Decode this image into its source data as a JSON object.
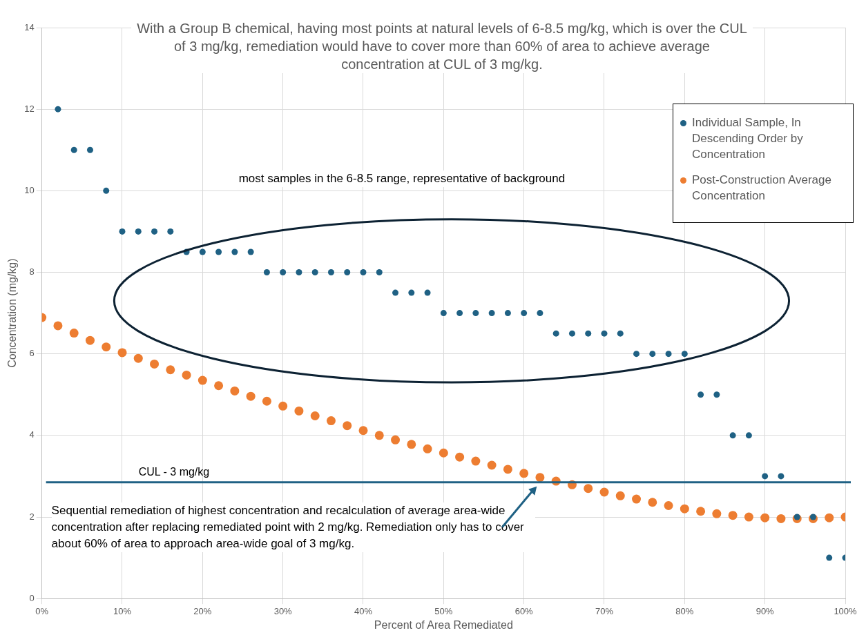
{
  "chart_data": {
    "type": "scatter",
    "title": "With a Group B chemical, having most points at natural levels of 6-8.5 mg/kg,  which is over the CUL of 3 mg/kg,  remediation would have to cover more than 60% of area to achieve average concentration at CUL of 3 mg/kg.",
    "xlabel": "Percent of Area Remediated",
    "ylabel": "Concentration (mg/kg)",
    "series": [
      {
        "name": "Individual Sample, In Descending Order by Concentration",
        "color": "#1f6184",
        "x": [
          2,
          4,
          6,
          8,
          10,
          12,
          14,
          16,
          18,
          20,
          22,
          24,
          26,
          28,
          30,
          32,
          34,
          36,
          38,
          40,
          42,
          44,
          46,
          48,
          50,
          52,
          54,
          56,
          58,
          60,
          62,
          64,
          66,
          68,
          70,
          72,
          74,
          76,
          78,
          80,
          82,
          84,
          86,
          88,
          90,
          92,
          94,
          96,
          98,
          100
        ],
        "values": [
          12,
          11,
          11,
          10,
          9,
          9,
          9,
          9,
          8.5,
          8.5,
          8.5,
          8.5,
          8.5,
          8,
          8,
          8,
          8,
          8,
          8,
          8,
          8,
          7.5,
          7.5,
          7.5,
          7,
          7,
          7,
          7,
          7,
          7,
          7,
          6.5,
          6.5,
          6.5,
          6.5,
          6.5,
          6,
          6,
          6,
          6,
          5,
          5,
          4,
          4,
          3,
          3,
          2,
          2,
          1,
          1
        ]
      },
      {
        "name": "Post-Construction Average Concentration",
        "color": "#ed7d31",
        "x": [
          0,
          2,
          4,
          6,
          8,
          10,
          12,
          14,
          16,
          18,
          20,
          22,
          24,
          26,
          28,
          30,
          32,
          34,
          36,
          38,
          40,
          42,
          44,
          46,
          48,
          50,
          52,
          54,
          56,
          58,
          60,
          62,
          64,
          66,
          68,
          70,
          72,
          74,
          76,
          78,
          80,
          82,
          84,
          86,
          88,
          90,
          92,
          94,
          96,
          98,
          100
        ],
        "values": [
          6.89,
          6.69,
          6.51,
          6.33,
          6.17,
          6.03,
          5.89,
          5.75,
          5.61,
          5.48,
          5.35,
          5.22,
          5.09,
          4.96,
          4.84,
          4.72,
          4.6,
          4.48,
          4.36,
          4.24,
          4.12,
          4.0,
          3.89,
          3.78,
          3.67,
          3.57,
          3.47,
          3.37,
          3.27,
          3.17,
          3.07,
          2.97,
          2.88,
          2.79,
          2.7,
          2.61,
          2.52,
          2.44,
          2.36,
          2.28,
          2.2,
          2.14,
          2.08,
          2.04,
          2.0,
          1.98,
          1.96,
          1.96,
          1.96,
          1.98,
          2.0
        ]
      }
    ],
    "xlim": [
      0,
      100
    ],
    "xticks": [
      {
        "value": 0,
        "label": "0%"
      },
      {
        "value": 10,
        "label": "10%"
      },
      {
        "value": 20,
        "label": "20%"
      },
      {
        "value": 30,
        "label": "30%"
      },
      {
        "value": 40,
        "label": "40%"
      },
      {
        "value": 50,
        "label": "50%"
      },
      {
        "value": 60,
        "label": "60%"
      },
      {
        "value": 70,
        "label": "70%"
      },
      {
        "value": 80,
        "label": "80%"
      },
      {
        "value": 90,
        "label": "90%"
      },
      {
        "value": 100,
        "label": "100%"
      }
    ],
    "ylim": [
      0,
      14
    ],
    "yticks": [
      0,
      2,
      4,
      6,
      8,
      10,
      12,
      14
    ],
    "ref_lines": [
      {
        "axis": "y",
        "value": 2.85,
        "label": "CUL - 3 mg/kg",
        "color": "#1f6184"
      }
    ],
    "annotations": [
      "most samples in the 6-8.5 range, representative of background",
      "Sequential remediation of highest concentration and recalculation of average area-wide concentration after replacing remediated point with 2 mg/kg. Remediation only has to cover about 60% of area to approach area-wide goal of 3 mg/kg."
    ],
    "grid": true,
    "legend": "top right",
    "marker": "circle"
  }
}
